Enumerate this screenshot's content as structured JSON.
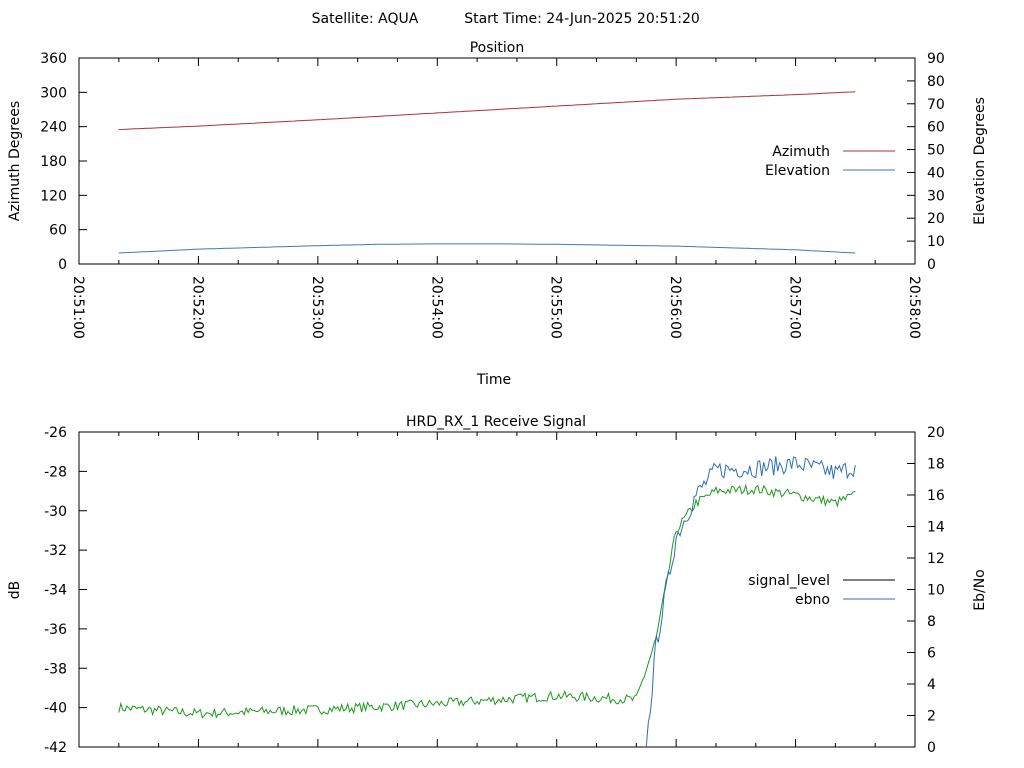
{
  "header": {
    "satellite_label": "Satellite: AQUA",
    "start_time_label": "Start Time: 24-Jun-2025 20:51:20"
  },
  "colors": {
    "azimuth": "#a83232",
    "elevation": "#3a7ab8",
    "signal_level": "#1a9a1a",
    "ebno": "#2f6db5",
    "legend_signal_swatch": "#000000"
  },
  "chart_data": [
    {
      "type": "line",
      "title": "Position",
      "xlabel": "Time",
      "ylabel": "Azimuth Degrees",
      "y2label": "Elevation Degrees",
      "xlim": [
        "20:51:00",
        "20:58:00"
      ],
      "ylim": [
        0,
        360
      ],
      "y2lim": [
        0,
        90
      ],
      "x_ticks": [
        "20:51:00",
        "20:52:00",
        "20:53:00",
        "20:54:00",
        "20:55:00",
        "20:56:00",
        "20:57:00",
        "20:58:00"
      ],
      "y_ticks": [
        0,
        60,
        120,
        180,
        240,
        300,
        360
      ],
      "y2_ticks": [
        0,
        10,
        20,
        30,
        40,
        50,
        60,
        70,
        80,
        90
      ],
      "legend_position": "right",
      "series": [
        {
          "name": "Azimuth",
          "axis": "y",
          "x": [
            "20:51:20",
            "20:52:00",
            "20:53:00",
            "20:54:00",
            "20:55:00",
            "20:56:00",
            "20:57:00",
            "20:57:30"
          ],
          "values": [
            235,
            241,
            252,
            264,
            276,
            288,
            296,
            301
          ]
        },
        {
          "name": "Elevation",
          "axis": "y2",
          "x": [
            "20:51:20",
            "20:52:00",
            "20:53:00",
            "20:53:30",
            "20:54:00",
            "20:54:30",
            "20:55:00",
            "20:56:00",
            "20:57:00",
            "20:57:30"
          ],
          "values": [
            4.8,
            6.5,
            8.0,
            8.6,
            8.8,
            8.8,
            8.6,
            7.8,
            6.2,
            4.8
          ]
        }
      ]
    },
    {
      "type": "line",
      "title": "HRD_RX_1 Receive Signal",
      "ylabel": "dB",
      "y2label": "Eb/No",
      "xlim": [
        "20:51:00",
        "20:58:00"
      ],
      "ylim": [
        -42,
        -26
      ],
      "y2lim": [
        0,
        20
      ],
      "y_ticks": [
        -42,
        -40,
        -38,
        -36,
        -34,
        -32,
        -30,
        -28,
        -26
      ],
      "y2_ticks": [
        0,
        2,
        4,
        6,
        8,
        10,
        12,
        14,
        16,
        18,
        20
      ],
      "legend_position": "right",
      "series": [
        {
          "name": "signal_level",
          "axis": "y",
          "x": [
            "20:51:20",
            "20:52:00",
            "20:53:00",
            "20:54:00",
            "20:55:00",
            "20:55:40",
            "20:55:50",
            "20:56:00",
            "20:56:10",
            "20:56:20",
            "20:56:40",
            "20:57:00",
            "20:57:20",
            "20:57:30"
          ],
          "values": [
            -40.0,
            -40.3,
            -40.1,
            -39.8,
            -39.4,
            -39.6,
            -36.5,
            -31.0,
            -29.6,
            -29.0,
            -28.9,
            -29.2,
            -29.6,
            -29.2
          ]
        },
        {
          "name": "ebno",
          "axis": "y2",
          "x": [
            "20:55:45",
            "20:55:50",
            "20:56:00",
            "20:56:10",
            "20:56:20",
            "20:56:40",
            "20:57:00",
            "20:57:20",
            "20:57:30"
          ],
          "values": [
            0,
            6.5,
            13.3,
            16.0,
            17.6,
            17.7,
            18.0,
            17.4,
            17.8
          ]
        }
      ]
    }
  ]
}
